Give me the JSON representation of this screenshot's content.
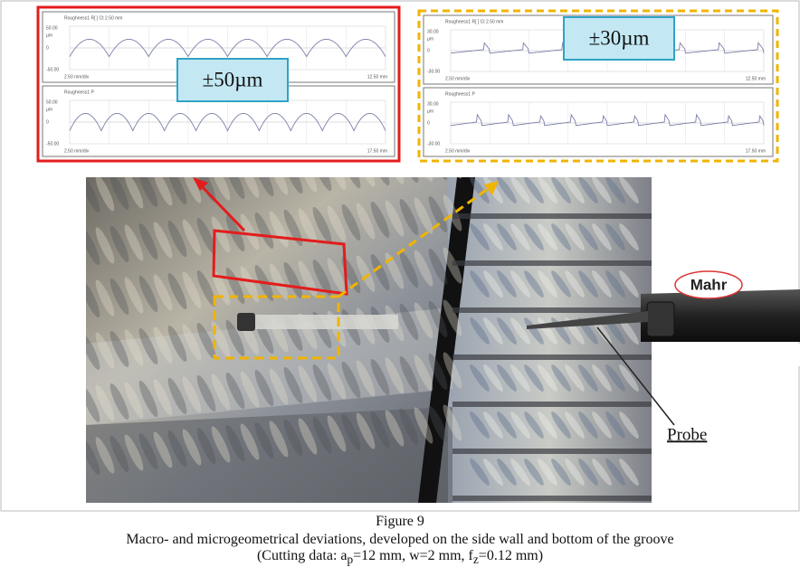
{
  "figure": {
    "panels": [
      {
        "label": "±50µm",
        "charts": [
          {
            "title": "Roughness1 R[ ] Ct 2.50 mm",
            "y_top": "50.00",
            "unit": "µm",
            "zero": "0",
            "y_bottom": "-50.00",
            "x_left": "2.50 mm/div",
            "x_right": "12.50 mm"
          },
          {
            "title": "Roughness1 P",
            "y_top": "50.00",
            "unit": "µm",
            "zero": "0",
            "y_bottom": "-50.00",
            "x_left": "2.50 mm/div",
            "x_right": "17.50 mm"
          }
        ]
      },
      {
        "label": "±30µm",
        "charts": [
          {
            "title": "Roughness1 R[ ] Ct 2.50 mm",
            "y_top": "30.00",
            "unit": "µm",
            "zero": "0",
            "y_bottom": "-30.00",
            "x_left": "2.50 mm/div",
            "x_right": "12.50 mm"
          },
          {
            "title": "Roughness1 P",
            "y_top": "30.00",
            "unit": "µm",
            "zero": "0",
            "y_bottom": "-30.00",
            "x_left": "2.50 mm/div",
            "x_right": "17.50 mm"
          }
        ]
      }
    ],
    "photo": {
      "brand": "Mahr",
      "probe_label": "Probe"
    },
    "caption": {
      "number": "Figure 9",
      "line1": "Macro- and microgeometrical deviations, developed on the side wall and bottom of the groove",
      "line2": [
        "(Cutting data: a",
        "p",
        "=12 mm, w=2 mm, f",
        "z",
        "=0.12 mm)"
      ]
    }
  }
}
